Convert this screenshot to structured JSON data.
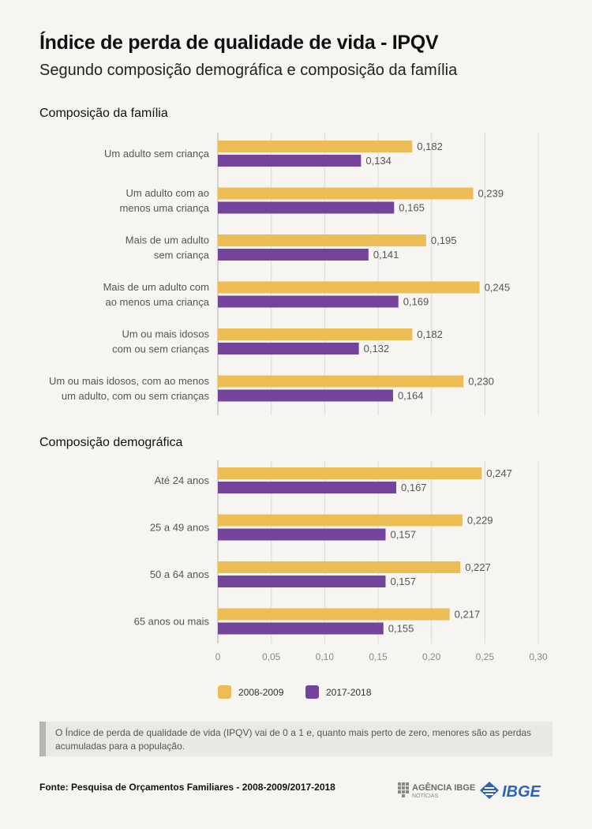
{
  "title": "Índice de perda de qualidade de vida - IPQV",
  "subtitle": "Segundo composição demográfica e composição da família",
  "colors": {
    "series_2008": "#ecbd55",
    "series_2017": "#73449a",
    "grid": "#dcdad6",
    "axis": "#c8c6c2"
  },
  "chart_data": {
    "type": "bar",
    "orientation": "horizontal",
    "xlim": [
      0,
      0.3
    ],
    "ticks": [
      "0",
      "0,05",
      "0,10",
      "0,15",
      "0,20",
      "0,25",
      "0,30"
    ],
    "tick_values": [
      0,
      0.05,
      0.1,
      0.15,
      0.2,
      0.25,
      0.3
    ],
    "grid": true,
    "legend": [
      "2008-2009",
      "2017-2018"
    ],
    "legend_placement": "bottom",
    "sections": [
      {
        "title": "Composição da família",
        "categories": [
          {
            "lines": [
              "Um adulto sem criança"
            ],
            "values": [
              0.182,
              0.134
            ],
            "labels": [
              "0,182",
              "0,134"
            ]
          },
          {
            "lines": [
              "Um adulto com ao",
              "menos uma criança"
            ],
            "values": [
              0.239,
              0.165
            ],
            "labels": [
              "0,239",
              "0,165"
            ]
          },
          {
            "lines": [
              "Mais de um adulto",
              "sem criança"
            ],
            "values": [
              0.195,
              0.141
            ],
            "labels": [
              "0,195",
              "0,141"
            ]
          },
          {
            "lines": [
              "Mais de um adulto com",
              "ao menos uma criança"
            ],
            "values": [
              0.245,
              0.169
            ],
            "labels": [
              "0,245",
              "0,169"
            ]
          },
          {
            "lines": [
              "Um ou mais idosos",
              "com ou sem crianças"
            ],
            "values": [
              0.182,
              0.132
            ],
            "labels": [
              "0,182",
              "0,132"
            ]
          },
          {
            "lines": [
              "Um ou mais idosos, com ao menos",
              "um adulto, com ou sem crianças"
            ],
            "values": [
              0.23,
              0.164
            ],
            "labels": [
              "0,230",
              "0,164"
            ]
          }
        ]
      },
      {
        "title": "Composição demográfica",
        "categories": [
          {
            "lines": [
              "Até 24 anos"
            ],
            "values": [
              0.247,
              0.167
            ],
            "labels": [
              "0,247",
              "0,167"
            ]
          },
          {
            "lines": [
              "25 a 49 anos"
            ],
            "values": [
              0.229,
              0.157
            ],
            "labels": [
              "0,229",
              "0,157"
            ]
          },
          {
            "lines": [
              "50 a 64 anos"
            ],
            "values": [
              0.227,
              0.157
            ],
            "labels": [
              "0,227",
              "0,157"
            ]
          },
          {
            "lines": [
              "65 anos ou mais"
            ],
            "values": [
              0.217,
              0.155
            ],
            "labels": [
              "0,217",
              "0,155"
            ]
          }
        ]
      }
    ]
  },
  "note": "O Índice de perda de qualidade de vida (IPQV) vai de 0 a 1 e, quanto mais perto de zero, menores são as perdas acumuladas para a população.",
  "source": "Fonte: Pesquisa de Orçamentos Familiares - 2008-2009/2017-2018",
  "logos": {
    "agencia_title": "AGÊNCIA IBGE",
    "agencia_sub": "NOTÍCIAS",
    "ibge": "IBGE"
  }
}
